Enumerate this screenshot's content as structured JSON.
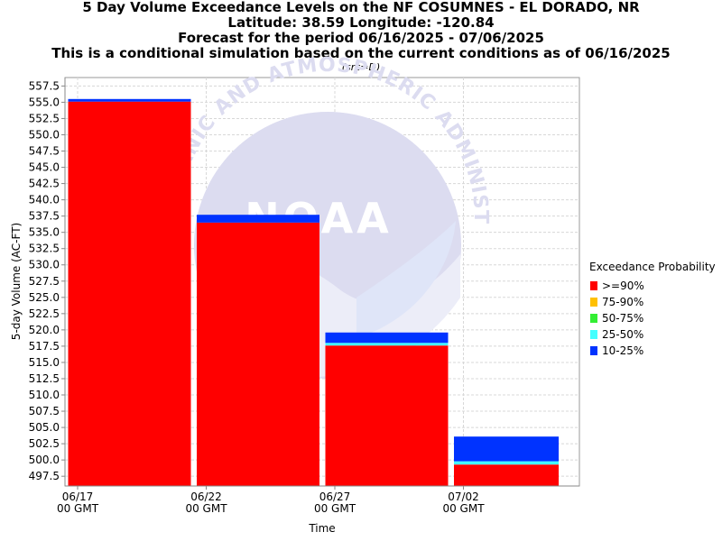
{
  "titles": {
    "line1": "5 Day Volume Exceedance Levels on the NF COSUMNES - EL DORADO, NR",
    "line2": "Latitude: 38.59 Longitude: -120.84",
    "line3": "Forecast for the period 06/16/2025 - 07/06/2025",
    "line4": "This is a conditional simulation based on the current conditions as of 06/16/2025",
    "source": "(src=D)"
  },
  "watermark": {
    "arc_text": "OCEANIC AND ATMOSPHERIC ADMINISTRATION",
    "logo_text": "NOAA"
  },
  "chart_data": {
    "type": "bar",
    "stacked_levels": true,
    "xlabel": "Time",
    "ylabel": "5-day Volume (AC-FT)",
    "ylim": [
      496.0,
      558.8
    ],
    "y_ticks": [
      "557.5",
      "555.0",
      "552.5",
      "550.0",
      "547.5",
      "545.0",
      "542.5",
      "540.0",
      "537.5",
      "535.0",
      "532.5",
      "530.0",
      "527.5",
      "525.0",
      "522.5",
      "520.0",
      "517.5",
      "515.0",
      "512.5",
      "510.0",
      "507.5",
      "505.0",
      "502.5",
      "500.0",
      "497.5"
    ],
    "x_ticks": [
      {
        "date": "06/17",
        "tz": "00 GMT"
      },
      {
        "date": "06/22",
        "tz": "00 GMT"
      },
      {
        "date": "06/27",
        "tz": "00 GMT"
      },
      {
        "date": "07/02",
        "tz": "00 GMT"
      }
    ],
    "periods": [
      {
        "start": "06/17",
        "end": "06/22",
        ">=90%": 555.1,
        "75-90%": 555.1,
        "50-75%": 555.1,
        "25-50%": 555.1,
        "10-25%": 555.5
      },
      {
        "start": "06/22",
        "end": "06/27",
        ">=90%": 536.5,
        "75-90%": 536.5,
        "50-75%": 536.5,
        "25-50%": 536.5,
        "10-25%": 537.7
      },
      {
        "start": "06/27",
        "end": "07/02",
        ">=90%": 517.6,
        "75-90%": 517.6,
        "50-75%": 517.6,
        "25-50%": 518.0,
        "10-25%": 519.6
      },
      {
        "start": "07/02",
        "end": "07/06",
        ">=90%": 499.3,
        "75-90%": 499.3,
        "50-75%": 499.3,
        "25-50%": 499.8,
        "10-25%": 503.6
      }
    ],
    "legend": {
      "title": "Exceedance Probability",
      "placement": "right",
      "items": [
        {
          "label": ">=90%",
          "key": ">=90%",
          "color": "#ff0000"
        },
        {
          "label": "75-90%",
          "key": "75-90%",
          "color": "#ffc000"
        },
        {
          "label": "50-75%",
          "key": "50-75%",
          "color": "#33ee33"
        },
        {
          "label": "25-50%",
          "key": "25-50%",
          "color": "#44ffff"
        },
        {
          "label": "10-25%",
          "key": "10-25%",
          "color": "#0033ff"
        }
      ]
    },
    "grid": true
  }
}
